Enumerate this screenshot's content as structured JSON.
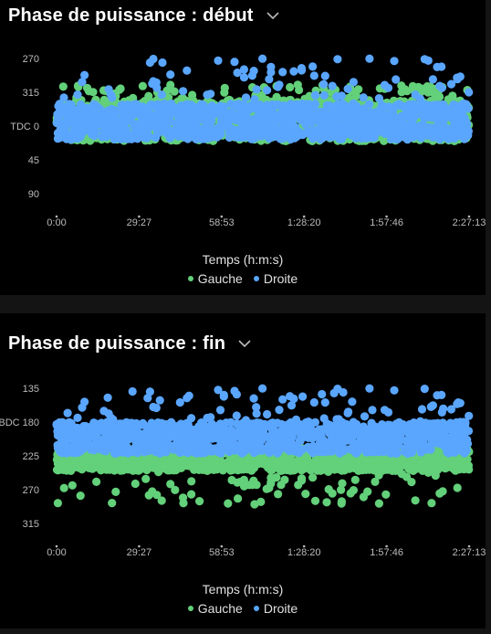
{
  "colors": {
    "gauche": "#63d07a",
    "droite": "#5aa6ff",
    "background": "#000000",
    "tick": "#bbbbbb"
  },
  "panel1": {
    "title": "Phase de puissance : début",
    "dropdown_icon": "chevron-down-icon"
  },
  "panel2": {
    "title": "Phase de puissance : fin",
    "dropdown_icon": "chevron-down-icon"
  },
  "chart_data": [
    {
      "type": "scatter",
      "title": "Phase de puissance : début",
      "xlabel": "Temps (h:m:s)",
      "ylabel": "",
      "x_tick_labels": [
        "0:00",
        "29:27",
        "58:53",
        "1:28:20",
        "1:57:46",
        "2:27:13"
      ],
      "x_range_seconds": [
        0,
        8833
      ],
      "y_tick_labels": [
        "270",
        "315",
        "TDC 0",
        "45",
        "90"
      ],
      "y_tick_values_deg": [
        270,
        315,
        360,
        405,
        450
      ],
      "y_range_deg": [
        270,
        450
      ],
      "y_inverted": true,
      "legend_position": "bottom",
      "series": [
        {
          "name": "Gauche",
          "color": "#63d07a",
          "typical_range_deg": [
            325,
            380
          ],
          "outlier_range_deg": [
            305,
            330
          ]
        },
        {
          "name": "Droite",
          "color": "#5aa6ff",
          "typical_range_deg": [
            330,
            378
          ],
          "outlier_range_deg": [
            270,
            325
          ]
        }
      ]
    },
    {
      "type": "scatter",
      "title": "Phase de puissance : fin",
      "xlabel": "Temps (h:m:s)",
      "ylabel": "",
      "x_tick_labels": [
        "0:00",
        "29:27",
        "58:53",
        "1:28:20",
        "1:57:46",
        "2:27:13"
      ],
      "x_range_seconds": [
        0,
        8833
      ],
      "y_tick_labels": [
        "135",
        "BDC 180",
        "225",
        "270",
        "315"
      ],
      "y_tick_values_deg": [
        135,
        180,
        225,
        270,
        315
      ],
      "y_range_deg": [
        135,
        315
      ],
      "y_inverted": true,
      "legend_position": "bottom",
      "series": [
        {
          "name": "Gauche",
          "color": "#63d07a",
          "typical_range_deg": [
            215,
            245
          ],
          "outlier_range_deg": [
            245,
            290
          ]
        },
        {
          "name": "Droite",
          "color": "#5aa6ff",
          "typical_range_deg": [
            180,
            222
          ],
          "outlier_range_deg": [
            135,
            180
          ]
        }
      ]
    }
  ],
  "legend": {
    "gauche": "Gauche",
    "droite": "Droite"
  }
}
